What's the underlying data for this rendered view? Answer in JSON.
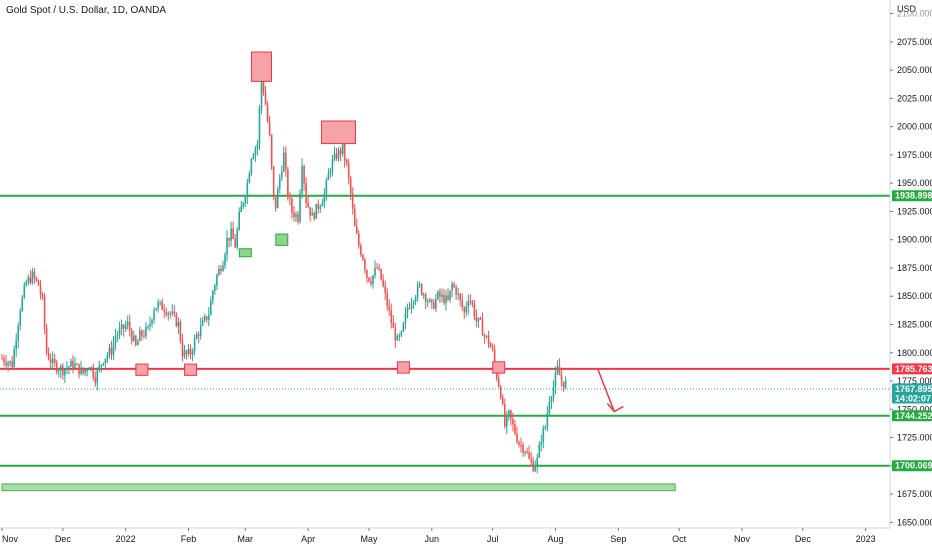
{
  "header": {
    "title": "Gold Spot / U.S. Dollar, 1D, OANDA"
  },
  "chart_data": {
    "type": "candlestick",
    "title": "Gold Spot / U.S. Dollar, 1D, OANDA",
    "yunit": "USD",
    "ylim": [
      1645,
      2112
    ],
    "y_ticks": [
      2100,
      2075,
      2050,
      2025,
      2000,
      1975,
      1950,
      1925,
      1900,
      1875,
      1850,
      1825,
      1800,
      1775,
      1750,
      1725,
      1700,
      1675,
      1650
    ],
    "y_tick_labels": [
      "2100.000",
      "2075.000",
      "2050.000",
      "2025.000",
      "2000.000",
      "1975.000",
      "1950.000",
      "1925.000",
      "1900.000",
      "1875.000",
      "1850.000",
      "1825.000",
      "1800.000",
      "1775.000",
      "1750.000",
      "1725.000",
      "1700.000",
      "1675.000",
      "1650.000"
    ],
    "x_ticks": [
      {
        "label": "Nov",
        "x": 0
      },
      {
        "label": "Dec",
        "x": 30
      },
      {
        "label": "2022",
        "x": 61
      },
      {
        "label": "Feb",
        "x": 92
      },
      {
        "label": "Mar",
        "x": 120
      },
      {
        "label": "Apr",
        "x": 151
      },
      {
        "label": "May",
        "x": 181
      },
      {
        "label": "Jun",
        "x": 212
      },
      {
        "label": "Jul",
        "x": 242
      },
      {
        "label": "Aug",
        "x": 273
      },
      {
        "label": "Sep",
        "x": 304
      },
      {
        "label": "Oct",
        "x": 334
      },
      {
        "label": "Nov",
        "x": 365
      },
      {
        "label": "Dec",
        "x": 395
      },
      {
        "label": "2023",
        "x": 426
      }
    ],
    "xlim": [
      0,
      438
    ],
    "price_path": [
      [
        0,
        1795
      ],
      [
        5,
        1790
      ],
      [
        9,
        1840
      ],
      [
        12,
        1862
      ],
      [
        15,
        1868
      ],
      [
        18,
        1860
      ],
      [
        20,
        1845
      ],
      [
        22,
        1800
      ],
      [
        25,
        1790
      ],
      [
        30,
        1785
      ],
      [
        35,
        1790
      ],
      [
        40,
        1782
      ],
      [
        43,
        1790
      ],
      [
        46,
        1778
      ],
      [
        50,
        1795
      ],
      [
        54,
        1802
      ],
      [
        56,
        1815
      ],
      [
        59,
        1820
      ],
      [
        62,
        1825
      ],
      [
        64,
        1815
      ],
      [
        66,
        1805
      ],
      [
        68,
        1815
      ],
      [
        72,
        1820
      ],
      [
        75,
        1840
      ],
      [
        77,
        1842
      ],
      [
        80,
        1840
      ],
      [
        83,
        1835
      ],
      [
        85,
        1830
      ],
      [
        87,
        1825
      ],
      [
        89,
        1800
      ],
      [
        91,
        1798
      ],
      [
        93,
        1800
      ],
      [
        96,
        1815
      ],
      [
        99,
        1825
      ],
      [
        102,
        1835
      ],
      [
        104,
        1855
      ],
      [
        106,
        1868
      ],
      [
        109,
        1882
      ],
      [
        111,
        1900
      ],
      [
        113,
        1905
      ],
      [
        115,
        1895
      ],
      [
        117,
        1920
      ],
      [
        119,
        1935
      ],
      [
        121,
        1950
      ],
      [
        123,
        1975
      ],
      [
        126,
        1985
      ],
      [
        128,
        2045
      ],
      [
        130,
        2020
      ],
      [
        132,
        1990
      ],
      [
        134,
        1935
      ],
      [
        135,
        1930
      ],
      [
        137,
        1955
      ],
      [
        139,
        1975
      ],
      [
        141,
        1940
      ],
      [
        143,
        1925
      ],
      [
        146,
        1920
      ],
      [
        148,
        1970
      ],
      [
        150,
        1935
      ],
      [
        153,
        1920
      ],
      [
        156,
        1930
      ],
      [
        159,
        1940
      ],
      [
        162,
        1965
      ],
      [
        165,
        1975
      ],
      [
        168,
        1980
      ],
      [
        170,
        1965
      ],
      [
        172,
        1940
      ],
      [
        174,
        1910
      ],
      [
        176,
        1895
      ],
      [
        178,
        1885
      ],
      [
        180,
        1868
      ],
      [
        182,
        1865
      ],
      [
        185,
        1875
      ],
      [
        187,
        1865
      ],
      [
        189,
        1850
      ],
      [
        191,
        1835
      ],
      [
        193,
        1820
      ],
      [
        195,
        1810
      ],
      [
        197,
        1815
      ],
      [
        200,
        1840
      ],
      [
        203,
        1850
      ],
      [
        206,
        1858
      ],
      [
        209,
        1850
      ],
      [
        212,
        1840
      ],
      [
        215,
        1850
      ],
      [
        218,
        1848
      ],
      [
        220,
        1845
      ],
      [
        222,
        1860
      ],
      [
        224,
        1855
      ],
      [
        226,
        1845
      ],
      [
        228,
        1835
      ],
      [
        230,
        1850
      ],
      [
        232,
        1842
      ],
      [
        234,
        1828
      ],
      [
        236,
        1825
      ],
      [
        238,
        1815
      ],
      [
        240,
        1810
      ],
      [
        242,
        1800
      ],
      [
        244,
        1780
      ],
      [
        246,
        1765
      ],
      [
        248,
        1735
      ],
      [
        250,
        1745
      ],
      [
        252,
        1735
      ],
      [
        255,
        1720
      ],
      [
        258,
        1715
      ],
      [
        260,
        1705
      ],
      [
        262,
        1700
      ],
      [
        264,
        1705
      ],
      [
        266,
        1725
      ],
      [
        268,
        1735
      ],
      [
        270,
        1760
      ],
      [
        272,
        1770
      ],
      [
        274,
        1785
      ],
      [
        276,
        1775
      ],
      [
        278,
        1772
      ]
    ],
    "levels": [
      {
        "name": "resistance",
        "value": 1785.763,
        "label": "1785.763",
        "color": "#f23645"
      },
      {
        "name": "resistance-green-top",
        "value": 1938.898,
        "label": "1938.898",
        "color": "#22ab3f"
      },
      {
        "name": "support",
        "value": 1744.252,
        "label": "1744.252",
        "color": "#22ab3f"
      },
      {
        "name": "support-low",
        "value": 1700.069,
        "label": "1700.069",
        "color": "#22ab3f"
      }
    ],
    "current_price": {
      "value": 1767.895,
      "label": "1767.895",
      "countdown": "14:02:07",
      "color": "#26a69a"
    },
    "support_zone": {
      "x_start": 0,
      "x_end": 332,
      "y_high": 1684,
      "y_low": 1678,
      "color": "#7fd17f"
    },
    "markers": [
      {
        "type": "red-box",
        "x": 128,
        "y_low": 2040,
        "y_high": 2066
      },
      {
        "type": "red-box",
        "x": 166,
        "y_low": 1985,
        "y_high": 2005
      },
      {
        "type": "red-box",
        "x": 69,
        "y_low": 1780,
        "y_high": 1790
      },
      {
        "type": "red-box",
        "x": 93,
        "y_low": 1780,
        "y_high": 1790
      },
      {
        "type": "red-box",
        "x": 198,
        "y_low": 1782,
        "y_high": 1792
      },
      {
        "type": "red-box",
        "x": 245,
        "y_low": 1782,
        "y_high": 1792
      },
      {
        "type": "green-box",
        "x": 120,
        "y_low": 1885,
        "y_high": 1892
      },
      {
        "type": "green-box",
        "x": 138,
        "y_low": 1895,
        "y_high": 1905
      }
    ],
    "projection_arrow": {
      "from_x": 294,
      "from_y": 1785,
      "to_x": 302,
      "to_y": 1748,
      "color": "#f23645"
    },
    "grid": false,
    "candle_up_color": "#26a69a",
    "candle_down_color": "#ef5350"
  }
}
